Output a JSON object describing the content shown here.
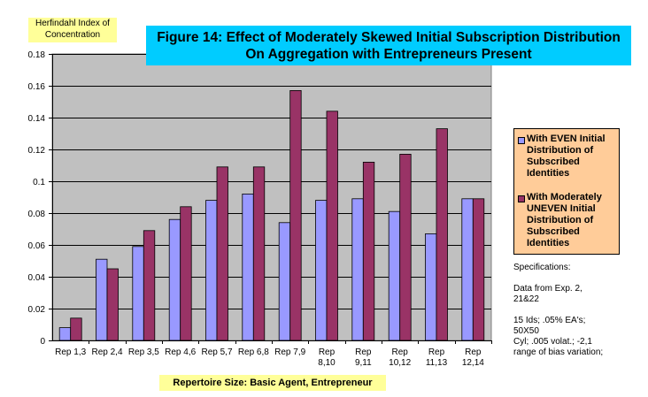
{
  "chart_data": {
    "type": "bar",
    "title": "Figure 14:  Effect of Moderately Skewed Initial Subscription Distribution On Aggregation  with Entrepreneurs Present",
    "title_lines": [
      "Figure 14:  Effect of Moderately Skewed Initial Subscription Distribution",
      "On Aggregation  with Entrepreneurs Present"
    ],
    "ylabel": "Herfindahl Index of Concentration",
    "ylabel_lines": [
      "Herfindahl Index of",
      "Concentration"
    ],
    "xlabel": "Repertoire Size:  Basic Agent, Entrepreneur",
    "ylim": [
      0,
      0.18
    ],
    "yticks": [
      "0",
      "0.02",
      "0.04",
      "0.06",
      "0.08",
      "0.1",
      "0.12",
      "0.14",
      "0.16",
      "0.18"
    ],
    "categories": [
      "Rep 1,3",
      "Rep 2,4",
      "Rep 3,5",
      "Rep 4,6",
      "Rep 5,7",
      "Rep 6,8",
      "Rep 7,9",
      "Rep 8,10",
      "Rep 9,11",
      "Rep 10,12",
      "Rep 11,13",
      "Rep 12,14"
    ],
    "category_lines": [
      [
        "Rep 1,3"
      ],
      [
        "Rep 2,4"
      ],
      [
        "Rep 3,5"
      ],
      [
        "Rep 4,6"
      ],
      [
        "Rep 5,7"
      ],
      [
        "Rep 6,8"
      ],
      [
        "Rep 7,9"
      ],
      [
        "Rep",
        "8,10"
      ],
      [
        "Rep",
        "9,11"
      ],
      [
        "Rep",
        "10,12"
      ],
      [
        "Rep",
        "11,13"
      ],
      [
        "Rep",
        "12,14"
      ]
    ],
    "series": [
      {
        "name": "With EVEN Initial Distribution of Subscribed Identities",
        "color": "#9999ff",
        "values": [
          0.008,
          0.051,
          0.059,
          0.076,
          0.088,
          0.092,
          0.074,
          0.088,
          0.089,
          0.081,
          0.067,
          0.089
        ]
      },
      {
        "name": "With Moderately UNEVEN Initial Distribution of Subscribed Identities",
        "color": "#993366",
        "values": [
          0.014,
          0.045,
          0.069,
          0.084,
          0.109,
          0.109,
          0.157,
          0.144,
          0.112,
          0.117,
          0.133,
          0.089
        ]
      }
    ],
    "grid": true,
    "plot_background": "#c0c0c0",
    "legend": {
      "placement": "right",
      "background": "#ffcc99",
      "entries": [
        [
          "With EVEN Initial",
          "Distribution of",
          "Subscribed",
          "Identities"
        ],
        [
          "With Moderately",
          "UNEVEN Initial",
          "Distribution of",
          "Subscribed",
          "Identities"
        ]
      ]
    }
  },
  "specifications": {
    "heading": "Specifications:",
    "lines": [
      "Data from Exp. 2,",
      "21&22",
      "15 Ids; .05% EA's;",
      "50X50",
      "Cyl; .005 volat.; -2,1",
      "range of bias variation;"
    ]
  }
}
